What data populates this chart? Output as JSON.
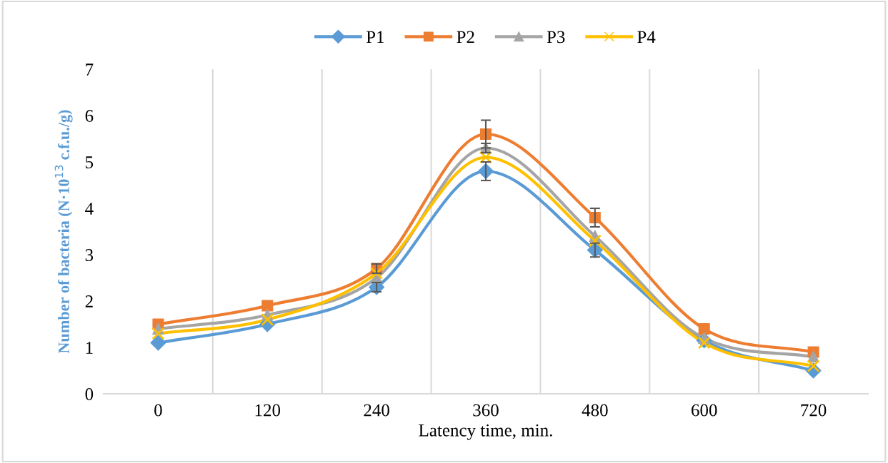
{
  "chart_data": {
    "type": "line",
    "xlabel": "Latency time, min.",
    "ylabel": "Number of bacteria (N·10$^{13}$ c.f.u./g)",
    "categories": [
      "0",
      "120",
      "240",
      "360",
      "480",
      "600",
      "720"
    ],
    "ylim": [
      0,
      7
    ],
    "yticks": [
      0,
      1,
      2,
      3,
      4,
      5,
      6,
      7
    ],
    "grid": "x",
    "legend": "top",
    "series": [
      {
        "name": "P1",
        "color": "#5b9bd5",
        "marker": "diamond",
        "values": [
          1.1,
          1.5,
          2.3,
          4.8,
          3.1,
          1.15,
          0.5
        ],
        "errors": [
          null,
          null,
          0.1,
          0.2,
          0.15,
          null,
          null
        ]
      },
      {
        "name": "P2",
        "color": "#ed7d31",
        "marker": "square",
        "values": [
          1.5,
          1.9,
          2.7,
          5.6,
          3.8,
          1.4,
          0.9
        ],
        "errors": [
          null,
          null,
          0.1,
          0.3,
          0.2,
          null,
          null
        ]
      },
      {
        "name": "P3",
        "color": "#a5a5a5",
        "marker": "triangle",
        "values": [
          1.4,
          1.7,
          2.5,
          5.3,
          3.4,
          1.2,
          0.8
        ],
        "errors": [
          null,
          null,
          null,
          0.1,
          null,
          null,
          null
        ]
      },
      {
        "name": "P4",
        "color": "#ffc000",
        "marker": "cross",
        "values": [
          1.3,
          1.6,
          2.6,
          5.1,
          3.3,
          1.1,
          0.6
        ]
      }
    ]
  }
}
